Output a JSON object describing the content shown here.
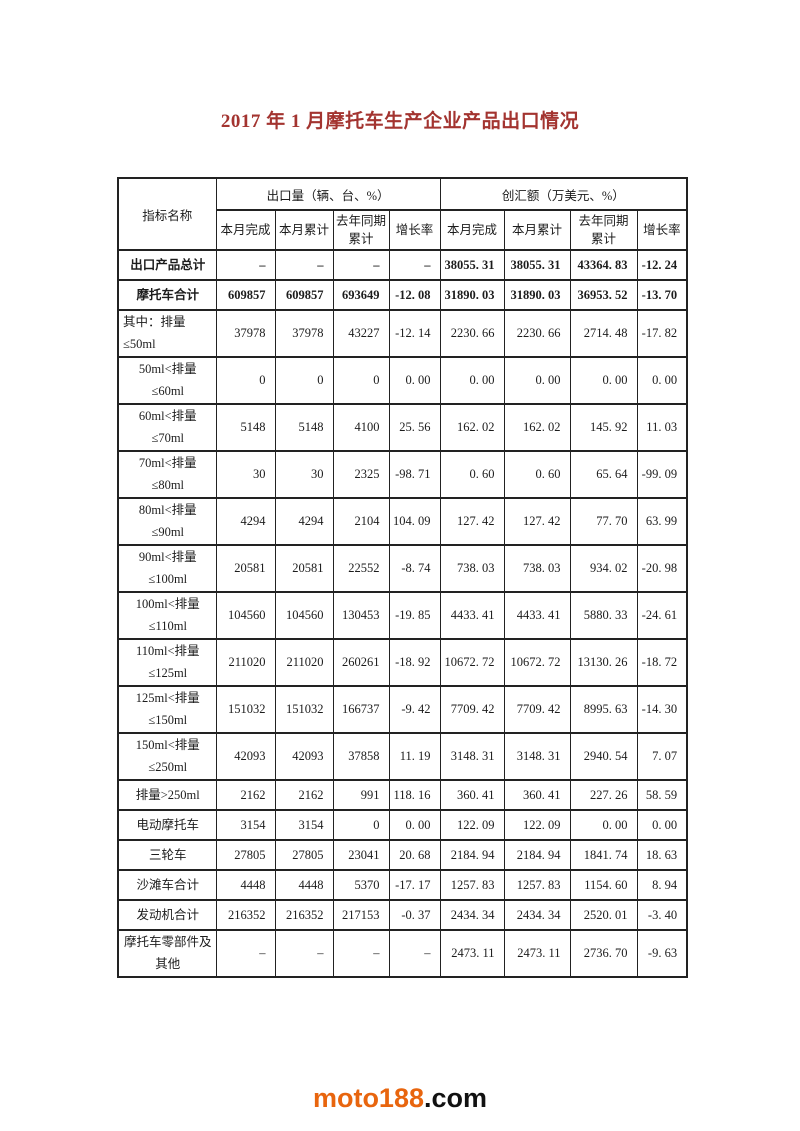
{
  "page": {
    "title": "2017 年 1 月摩托车生产企业产品出口情况",
    "footer": {
      "brand": "moto188",
      "suffix": ".com"
    }
  },
  "colors": {
    "title_red": "#a33430",
    "brand_orange": "#e8650e",
    "text": "#1c1c1c",
    "table_border": "#222222"
  },
  "table": {
    "corner_header": "指标名称",
    "column_groups": [
      {
        "label": "出口量（辆、台、%）",
        "subcolumns": [
          "本月完成",
          "本月累计",
          "去年同期累计",
          "增长率"
        ]
      },
      {
        "label": "创汇额（万美元、%）",
        "subcolumns": [
          "本月完成",
          "本月累计",
          "去年同期累计",
          "增长率"
        ]
      }
    ],
    "rows": [
      {
        "label": "出口产品总计",
        "bold": true,
        "label_align": "center",
        "values": [
          "–",
          "–",
          "–",
          "–",
          "38055. 31",
          "38055. 31",
          "43364. 83",
          "-12. 24"
        ]
      },
      {
        "label": "摩托车合计",
        "bold": true,
        "label_align": "center",
        "values": [
          "609857",
          "609857",
          "693649",
          "-12. 08",
          "31890. 03",
          "31890. 03",
          "36953. 52",
          "-13. 70"
        ]
      },
      {
        "label": "其中：排量≤50ml",
        "bold": false,
        "label_align": "left",
        "values": [
          "37978",
          "37978",
          "43227",
          "-12. 14",
          "2230. 66",
          "2230. 66",
          "2714. 48",
          "-17. 82"
        ]
      },
      {
        "label": "50ml<排量≤60ml",
        "bold": false,
        "label_align": "center",
        "values": [
          "0",
          "0",
          "0",
          "0. 00",
          "0. 00",
          "0. 00",
          "0. 00",
          "0. 00"
        ]
      },
      {
        "label": "60ml<排量≤70ml",
        "bold": false,
        "label_align": "center",
        "values": [
          "5148",
          "5148",
          "4100",
          "25. 56",
          "162. 02",
          "162. 02",
          "145. 92",
          "11. 03"
        ]
      },
      {
        "label": "70ml<排量≤80ml",
        "bold": false,
        "label_align": "center",
        "values": [
          "30",
          "30",
          "2325",
          "-98. 71",
          "0. 60",
          "0. 60",
          "65. 64",
          "-99. 09"
        ]
      },
      {
        "label": "80ml<排量≤90ml",
        "bold": false,
        "label_align": "center",
        "values": [
          "4294",
          "4294",
          "2104",
          "104. 09",
          "127. 42",
          "127. 42",
          "77. 70",
          "63. 99"
        ]
      },
      {
        "label": "90ml<排量≤100ml",
        "bold": false,
        "label_align": "center",
        "values": [
          "20581",
          "20581",
          "22552",
          "-8. 74",
          "738. 03",
          "738. 03",
          "934. 02",
          "-20. 98"
        ]
      },
      {
        "label": "100ml<排量≤110ml",
        "bold": false,
        "label_align": "center",
        "values": [
          "104560",
          "104560",
          "130453",
          "-19. 85",
          "4433. 41",
          "4433. 41",
          "5880. 33",
          "-24. 61"
        ]
      },
      {
        "label": "110ml<排量≤125ml",
        "bold": false,
        "label_align": "center",
        "values": [
          "211020",
          "211020",
          "260261",
          "-18. 92",
          "10672. 72",
          "10672. 72",
          "13130. 26",
          "-18. 72"
        ]
      },
      {
        "label": "125ml<排量≤150ml",
        "bold": false,
        "label_align": "center",
        "values": [
          "151032",
          "151032",
          "166737",
          "-9. 42",
          "7709. 42",
          "7709. 42",
          "8995. 63",
          "-14. 30"
        ]
      },
      {
        "label": "150ml<排量≤250ml",
        "bold": false,
        "label_align": "center",
        "values": [
          "42093",
          "42093",
          "37858",
          "11. 19",
          "3148. 31",
          "3148. 31",
          "2940. 54",
          "7. 07"
        ]
      },
      {
        "label": "排量>250ml",
        "bold": false,
        "label_align": "center",
        "values": [
          "2162",
          "2162",
          "991",
          "118. 16",
          "360. 41",
          "360. 41",
          "227. 26",
          "58. 59"
        ]
      },
      {
        "label": "电动摩托车",
        "bold": false,
        "label_align": "center",
        "values": [
          "3154",
          "3154",
          "0",
          "0. 00",
          "122. 09",
          "122. 09",
          "0. 00",
          "0. 00"
        ]
      },
      {
        "label": "三轮车",
        "bold": false,
        "label_align": "center",
        "values": [
          "27805",
          "27805",
          "23041",
          "20. 68",
          "2184. 94",
          "2184. 94",
          "1841. 74",
          "18. 63"
        ]
      },
      {
        "label": "沙滩车合计",
        "bold": false,
        "label_align": "center",
        "values": [
          "4448",
          "4448",
          "5370",
          "-17. 17",
          "1257. 83",
          "1257. 83",
          "1154. 60",
          "8. 94"
        ]
      },
      {
        "label": "发动机合计",
        "bold": false,
        "label_align": "center",
        "values": [
          "216352",
          "216352",
          "217153",
          "-0. 37",
          "2434. 34",
          "2434. 34",
          "2520. 01",
          "-3. 40"
        ]
      },
      {
        "label": "摩托车零部件及其他",
        "bold": false,
        "label_align": "center",
        "values": [
          "–",
          "–",
          "–",
          "–",
          "2473. 11",
          "2473. 11",
          "2736. 70",
          "-9. 63"
        ]
      }
    ]
  }
}
